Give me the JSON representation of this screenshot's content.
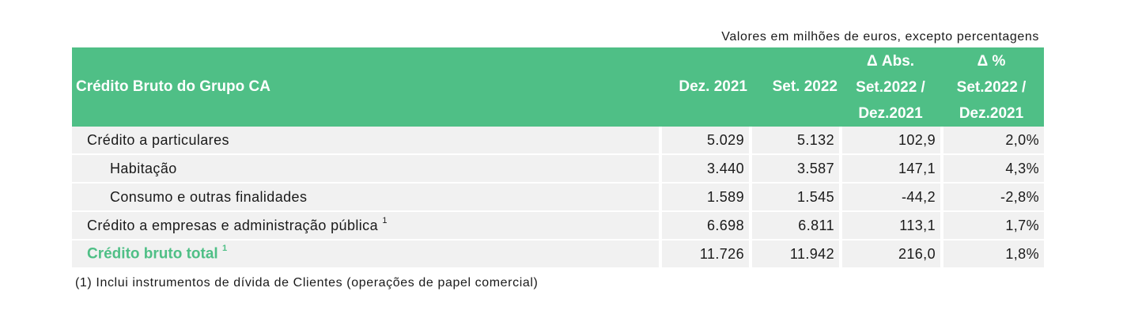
{
  "units_note": "Valores em milhões de euros, excepto percentagens",
  "header": {
    "label": "Crédito Bruto do Grupo CA",
    "col1": "Dez. 2021",
    "col2": "Set. 2022",
    "col3": [
      "Δ Abs.",
      "Set.2022 /",
      "Dez.2021"
    ],
    "col4": [
      "Δ %",
      "Set.2022 /",
      "Dez.2021"
    ]
  },
  "rows": [
    {
      "label": "Crédito a particulares",
      "sup": "",
      "values": [
        "5.029",
        "5.132",
        "102,9",
        "2,0%"
      ]
    },
    {
      "label": "Habitação",
      "sup": "",
      "values": [
        "3.440",
        "3.587",
        "147,1",
        "4,3%"
      ]
    },
    {
      "label": "Consumo e outras finalidades",
      "sup": "",
      "values": [
        "1.589",
        "1.545",
        "-44,2",
        "-2,8%"
      ]
    },
    {
      "label": "Crédito a empresas e administração pública",
      "sup": "1",
      "values": [
        "6.698",
        "6.811",
        "113,1",
        "1,7%"
      ]
    },
    {
      "label": "Crédito bruto total",
      "sup": "1",
      "values": [
        "11.726",
        "11.942",
        "216,0",
        "1,8%"
      ]
    }
  ],
  "footnote": "(1) Inclui instrumentos de dívida de Clientes (operações de papel comercial)",
  "colors": {
    "header_bg": "#4fbf86",
    "row_bg": "#f1f1f1",
    "total_label": "#4fbf86"
  }
}
